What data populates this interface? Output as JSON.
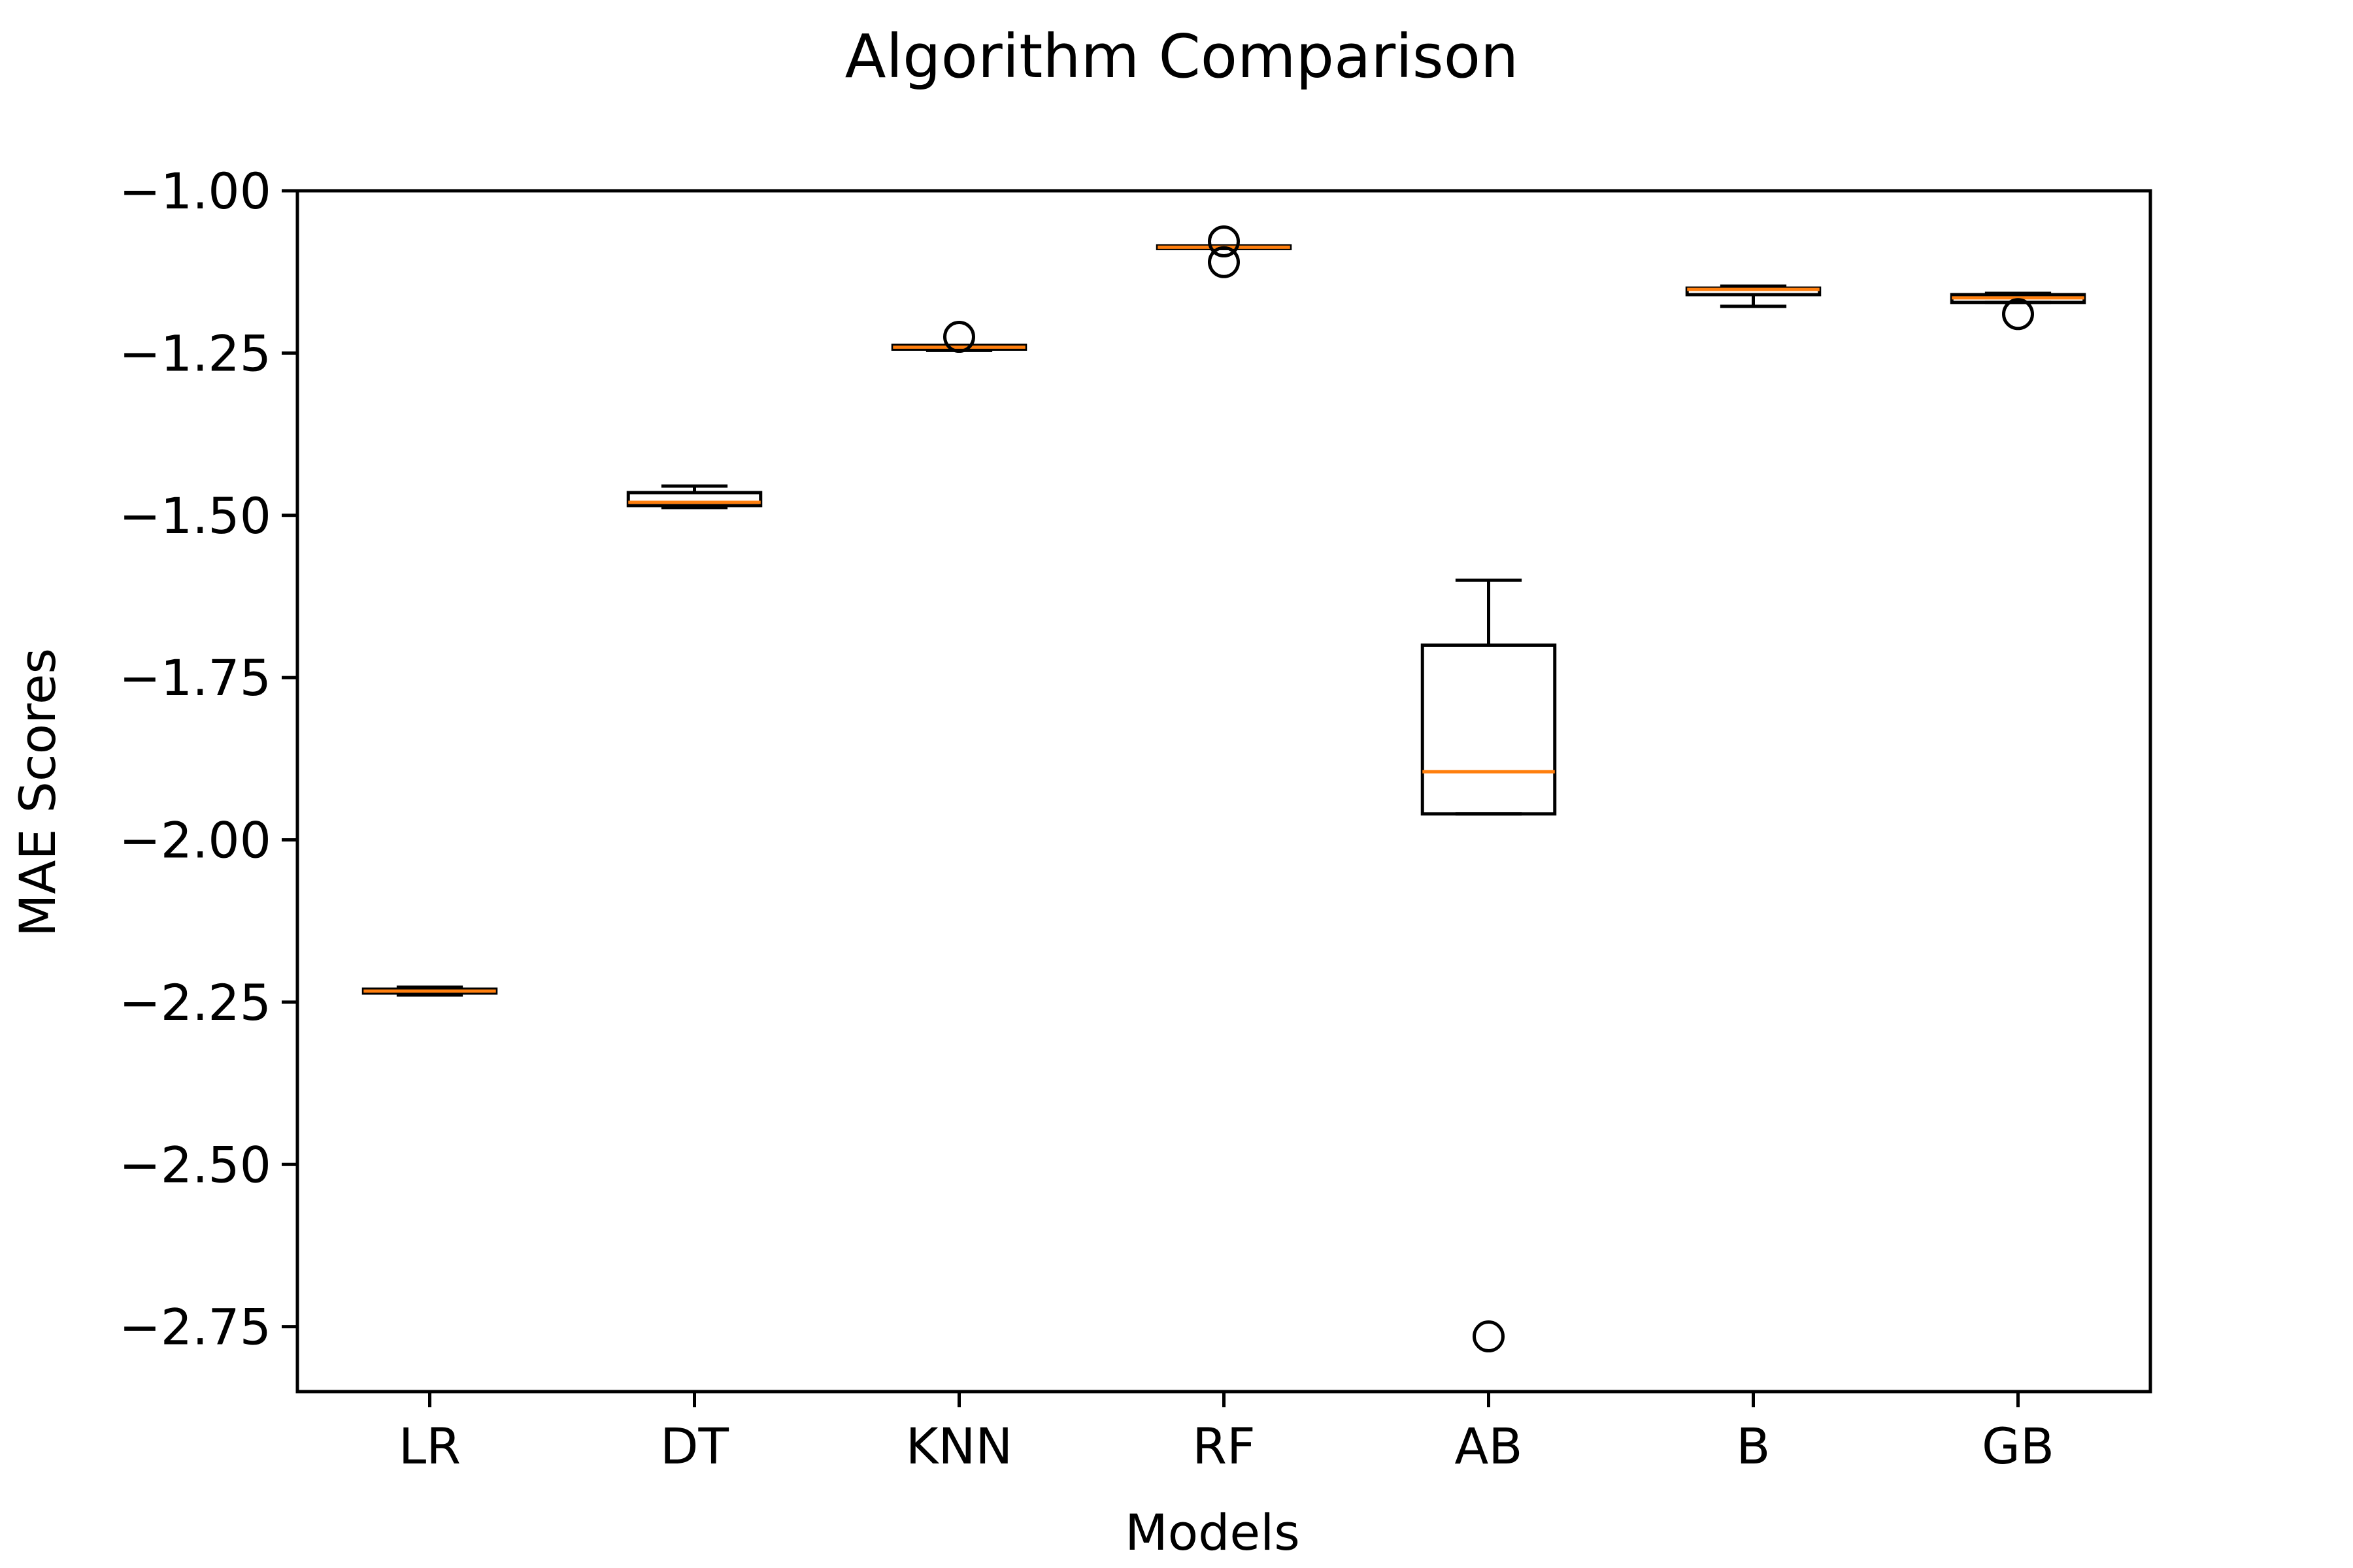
{
  "chart_data": {
    "type": "box",
    "title": "Algorithm Comparison",
    "xlabel": "Models",
    "ylabel": "MAE Scores",
    "categories": [
      "LR",
      "DT",
      "KNN",
      "RF",
      "AB",
      "B",
      "GB"
    ],
    "ylim": [
      -2.85,
      -1.0
    ],
    "yticks": [
      -1.0,
      -1.25,
      -1.5,
      -1.75,
      -2.0,
      -2.25,
      -2.5,
      -2.75
    ],
    "ytick_labels": [
      "−1.00",
      "−1.25",
      "−1.50",
      "−1.75",
      "−2.00",
      "−2.25",
      "−2.50",
      "−2.75"
    ],
    "grid": false,
    "boxes": [
      {
        "label": "LR",
        "whisker_high": -2.227,
        "q3": -2.23,
        "median": -2.233,
        "q1": -2.236,
        "whisker_low": -2.239,
        "fliers": []
      },
      {
        "label": "DT",
        "whisker_high": -1.455,
        "q3": -1.465,
        "median": -1.48,
        "q1": -1.485,
        "whisker_low": -1.488,
        "fliers": []
      },
      {
        "label": "KNN",
        "whisker_high": -1.238,
        "q3": -1.238,
        "median": -1.241,
        "q1": -1.244,
        "whisker_low": -1.246,
        "fliers": [
          -1.225
        ]
      },
      {
        "label": "RF",
        "whisker_high": -1.085,
        "q3": -1.085,
        "median": -1.087,
        "q1": -1.089,
        "whisker_low": -1.089,
        "fliers": [
          -1.078,
          -1.11
        ]
      },
      {
        "label": "AB",
        "whisker_high": -1.6,
        "q3": -1.7,
        "median": -1.895,
        "q1": -1.96,
        "whisker_low": -1.96,
        "fliers": [
          -2.765
        ]
      },
      {
        "label": "B",
        "whisker_high": -1.147,
        "q3": -1.15,
        "median": -1.152,
        "q1": -1.16,
        "whisker_low": -1.178,
        "fliers": []
      },
      {
        "label": "GB",
        "whisker_high": -1.158,
        "q3": -1.16,
        "median": -1.165,
        "q1": -1.172,
        "whisker_low": -1.172,
        "fliers": [
          -1.19
        ]
      }
    ],
    "colors": {
      "box": "#000000",
      "median": "#ff7f0e",
      "flier": "#000000"
    }
  }
}
